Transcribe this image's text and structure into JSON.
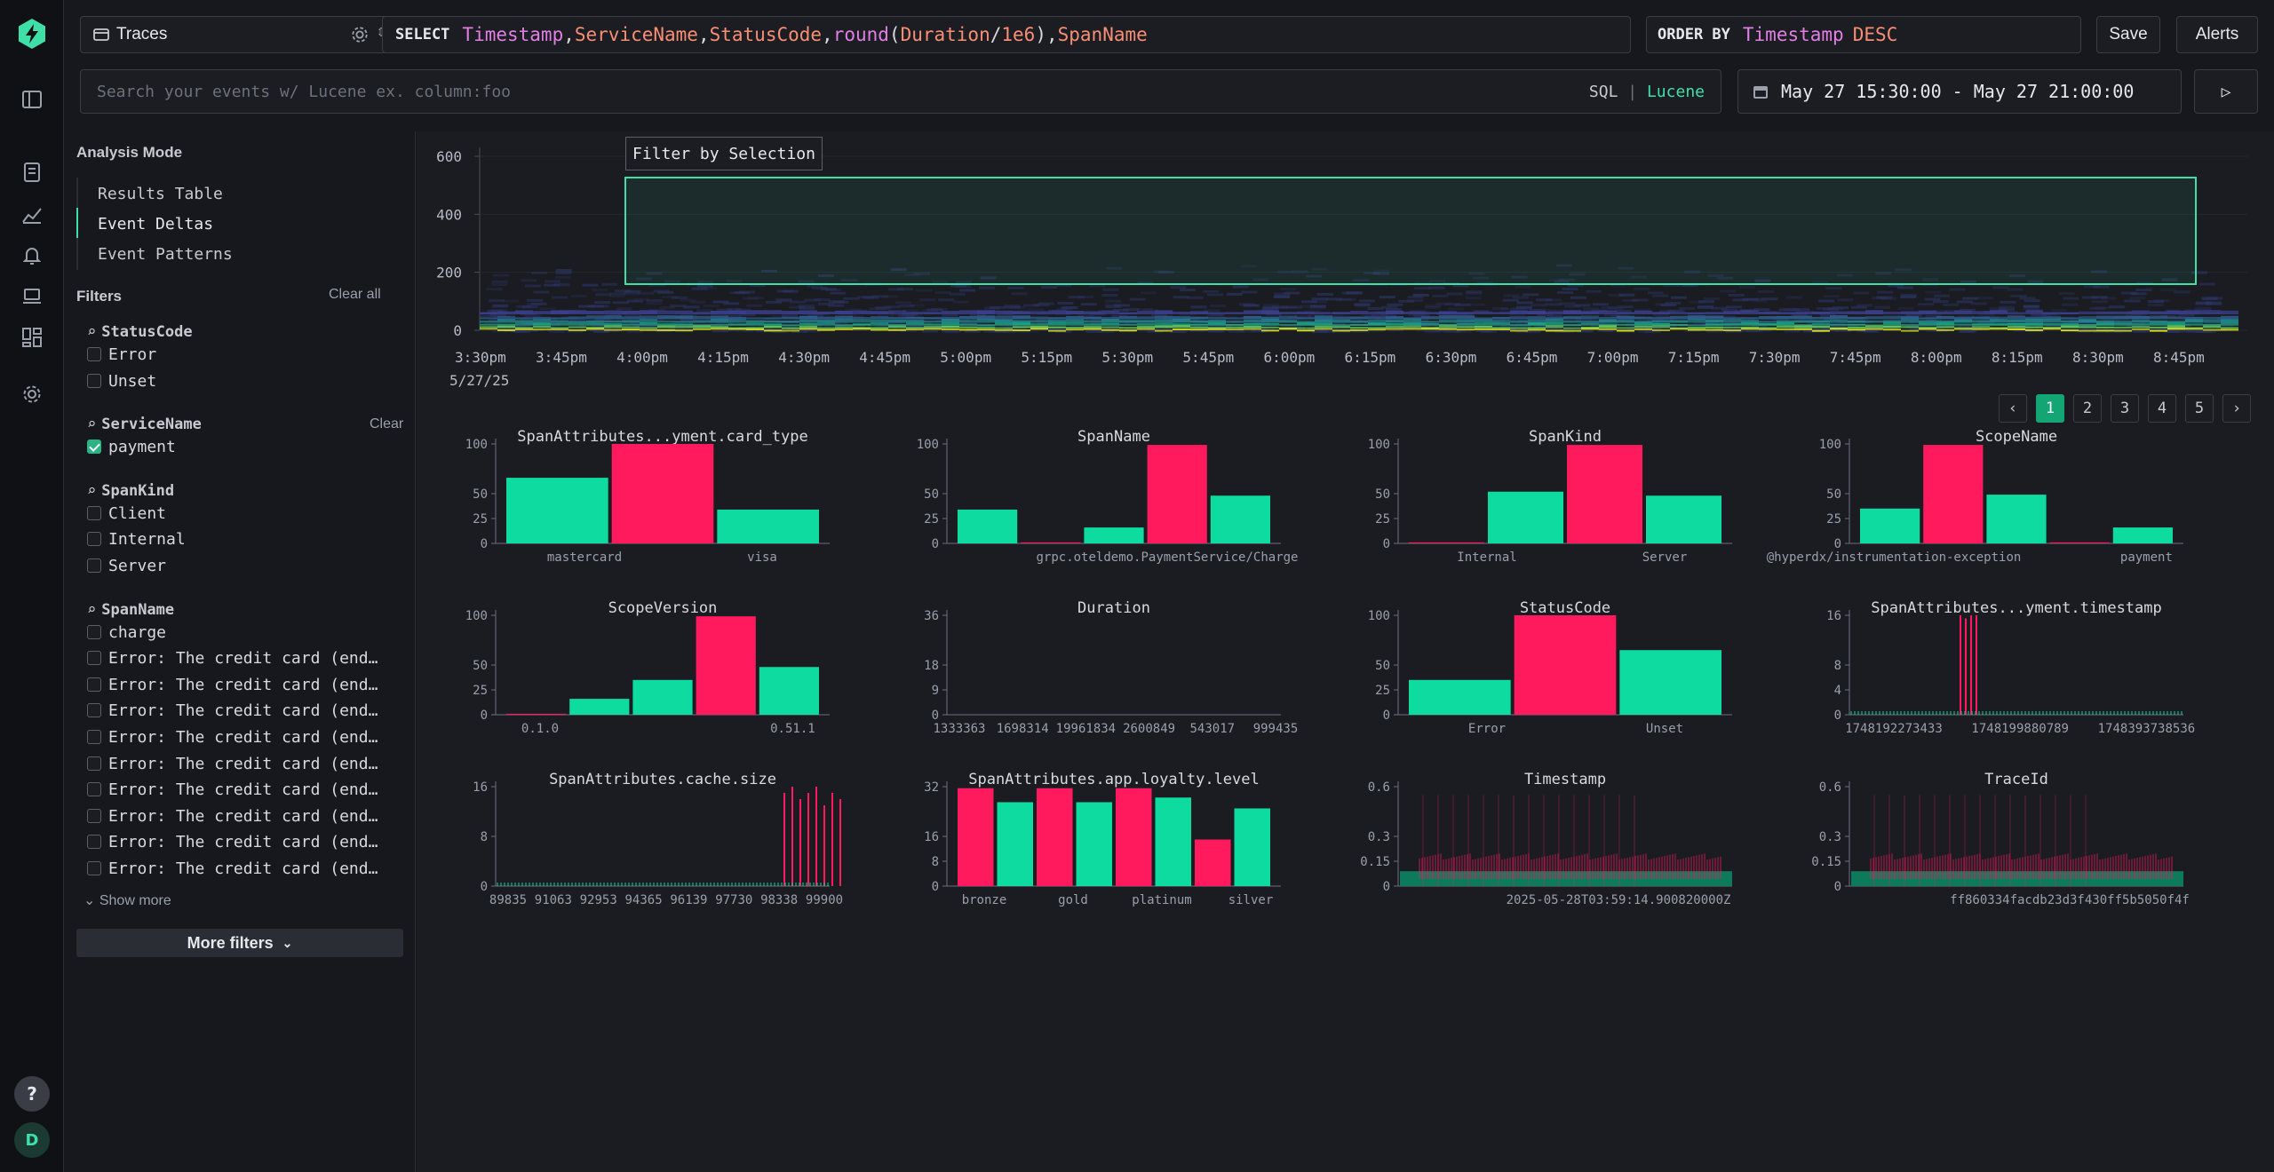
{
  "app": {
    "source": "Traces",
    "select_keyword": "SELECT",
    "select_expr_parts": [
      {
        "t": "Timestamp",
        "c": "#e27fe5"
      },
      {
        "t": ",",
        "c": "#d7dae0"
      },
      {
        "t": "ServiceName",
        "c": "#f98e74"
      },
      {
        "t": ",",
        "c": "#d7dae0"
      },
      {
        "t": "StatusCode",
        "c": "#f98e74"
      },
      {
        "t": ",",
        "c": "#d7dae0"
      },
      {
        "t": "round",
        "c": "#e27fe5"
      },
      {
        "t": "(",
        "c": "#d7dae0"
      },
      {
        "t": "Duration",
        "c": "#f98e74"
      },
      {
        "t": "/",
        "c": "#d7dae0"
      },
      {
        "t": "1e6",
        "c": "#f98e74"
      },
      {
        "t": "),",
        "c": "#d7dae0"
      },
      {
        "t": "SpanName",
        "c": "#f98e74"
      }
    ],
    "orderby_keyword": "ORDER BY",
    "orderby_field": "Timestamp",
    "orderby_dir": "DESC",
    "save_label": "Save",
    "alerts_label": "Alerts",
    "search_placeholder": "Search your events w/ Lucene ex. column:foo",
    "lang_sql": "SQL",
    "lang_sep": "|",
    "lang_lucene": "Lucene",
    "date_range": "May 27 15:30:00 - May 27 21:00:00",
    "help": "?",
    "avatar": "D"
  },
  "sidebar": {
    "analysis_mode_title": "Analysis Mode",
    "modes": [
      "Results Table",
      "Event Deltas",
      "Event Patterns"
    ],
    "active_mode": 1,
    "filters_title": "Filters",
    "clear_all": "Clear all",
    "groups": [
      {
        "name": "StatusCode",
        "clear": "",
        "options": [
          {
            "label": "Error",
            "checked": false
          },
          {
            "label": "Unset",
            "checked": false
          }
        ]
      },
      {
        "name": "ServiceName",
        "clear": "Clear",
        "options": [
          {
            "label": "payment",
            "checked": true
          }
        ]
      },
      {
        "name": "SpanKind",
        "clear": "",
        "options": [
          {
            "label": "Client",
            "checked": false
          },
          {
            "label": "Internal",
            "checked": false
          },
          {
            "label": "Server",
            "checked": false
          }
        ]
      },
      {
        "name": "SpanName",
        "clear": "",
        "options": [
          {
            "label": "charge",
            "checked": false
          },
          {
            "label": "Error: The credit card (end…",
            "checked": false
          },
          {
            "label": "Error: The credit card (end…",
            "checked": false
          },
          {
            "label": "Error: The credit card (end…",
            "checked": false
          },
          {
            "label": "Error: The credit card (end…",
            "checked": false
          },
          {
            "label": "Error: The credit card (end…",
            "checked": false
          },
          {
            "label": "Error: The credit card (end…",
            "checked": false
          },
          {
            "label": "Error: The credit card (end…",
            "checked": false
          },
          {
            "label": "Error: The credit card (end…",
            "checked": false
          },
          {
            "label": "Error: The credit card (end…",
            "checked": false
          }
        ]
      }
    ],
    "show_more": "Show more",
    "more_filters": "More filters"
  },
  "heatmap": {
    "tooltip": "Filter by Selection",
    "y_ticks": [
      "600",
      "400",
      "200",
      "0"
    ],
    "x_ticks": [
      "3:30pm",
      "3:45pm",
      "4:00pm",
      "4:15pm",
      "4:30pm",
      "4:45pm",
      "5:00pm",
      "5:15pm",
      "5:30pm",
      "5:45pm",
      "6:00pm",
      "6:15pm",
      "6:30pm",
      "6:45pm",
      "7:00pm",
      "7:15pm",
      "7:30pm",
      "7:45pm",
      "8:00pm",
      "8:15pm",
      "8:30pm",
      "8:45pm"
    ],
    "date_label": "5/27/25"
  },
  "pagination": {
    "prev": "‹",
    "pages": [
      "1",
      "2",
      "3",
      "4",
      "5"
    ],
    "active": 0,
    "next": "›"
  },
  "colors": {
    "selection": "#ff1a5e",
    "baseline": "#0ddba0",
    "accent": "#3fe0a7"
  },
  "chart_data": [
    {
      "title": "SpanAttributes...yment.card_type",
      "type": "bar",
      "y_ticks": [
        0,
        25,
        50,
        100
      ],
      "x_labels": [
        "mastercard",
        "visa"
      ],
      "bars": [
        {
          "s": "b",
          "v": 66
        },
        {
          "s": "s",
          "v": 100
        },
        {
          "s": "b",
          "v": 34
        }
      ]
    },
    {
      "title": "SpanName",
      "type": "bar",
      "y_ticks": [
        0,
        25,
        50,
        100
      ],
      "x_labels": [
        "grpc.oteldemo.PaymentService/Charge"
      ],
      "bars": [
        {
          "s": "b",
          "v": 34
        },
        {
          "s": "s",
          "v": 1
        },
        {
          "s": "b",
          "v": 16
        },
        {
          "s": "s",
          "v": 99
        },
        {
          "s": "b",
          "v": 48
        }
      ]
    },
    {
      "title": "SpanKind",
      "type": "bar",
      "y_ticks": [
        0,
        25,
        50,
        100
      ],
      "x_labels": [
        "Internal",
        "Server"
      ],
      "bars": [
        {
          "s": "s",
          "v": 1
        },
        {
          "s": "b",
          "v": 52
        },
        {
          "s": "s",
          "v": 99
        },
        {
          "s": "b",
          "v": 48
        }
      ]
    },
    {
      "title": "ScopeName",
      "type": "bar",
      "y_ticks": [
        0,
        25,
        50,
        100
      ],
      "x_labels": [
        "@hyperdx/instrumentation-exception",
        "payment"
      ],
      "bars": [
        {
          "s": "b",
          "v": 35
        },
        {
          "s": "s",
          "v": 99
        },
        {
          "s": "b",
          "v": 49
        },
        {
          "s": "s",
          "v": 1
        },
        {
          "s": "b",
          "v": 16
        }
      ]
    },
    {
      "title": "ScopeVersion",
      "type": "bar",
      "y_ticks": [
        0,
        25,
        50,
        100
      ],
      "x_labels": [
        "0.1.0",
        "0.51.1"
      ],
      "bars": [
        {
          "s": "s",
          "v": 1
        },
        {
          "s": "b",
          "v": 16
        },
        {
          "s": "b",
          "v": 35
        },
        {
          "s": "s",
          "v": 99
        },
        {
          "s": "b",
          "v": 48
        }
      ]
    },
    {
      "title": "Duration",
      "type": "bar",
      "y_ticks": [
        0,
        9,
        18,
        36
      ],
      "x_labels": [
        "1333363",
        "1698314",
        "19961834",
        "2600849",
        "543017",
        "999435"
      ],
      "bars": []
    },
    {
      "title": "StatusCode",
      "type": "bar",
      "y_ticks": [
        0,
        25,
        50,
        100
      ],
      "x_labels": [
        "Error",
        "Unset"
      ],
      "bars": [
        {
          "s": "b",
          "v": 35
        },
        {
          "s": "s",
          "v": 100
        },
        {
          "s": "b",
          "v": 65
        }
      ]
    },
    {
      "title": "SpanAttributes...yment.timestamp",
      "type": "bar",
      "y_ticks": [
        0,
        4,
        8,
        16
      ],
      "x_labels": [
        "1748192273433",
        "1748199880789",
        "1748393738536"
      ],
      "spikes": {
        "series": "s",
        "heights": [
          16,
          15.5,
          16,
          16
        ]
      }
    },
    {
      "title": "SpanAttributes.cache.size",
      "type": "bar",
      "y_ticks": [
        0,
        8,
        16
      ],
      "x_labels": [
        "89835",
        "91063",
        "92953",
        "94365",
        "96139",
        "97730",
        "98338",
        "99900"
      ],
      "spikes": {
        "series": "s",
        "heights": [
          15,
          16,
          14,
          15,
          16,
          13,
          15,
          14
        ]
      }
    },
    {
      "title": "SpanAttributes.app.loyalty.level",
      "type": "bar",
      "y_ticks": [
        0,
        8,
        16,
        32
      ],
      "x_labels": [
        "bronze",
        "gold",
        "platinum",
        "silver"
      ],
      "bars": [
        {
          "s": "s",
          "v": 31.5
        },
        {
          "s": "b",
          "v": 27
        },
        {
          "s": "s",
          "v": 31.5
        },
        {
          "s": "b",
          "v": 27
        },
        {
          "s": "s",
          "v": 31.5
        },
        {
          "s": "b",
          "v": 28.5
        },
        {
          "s": "s",
          "v": 15
        },
        {
          "s": "b",
          "v": 25
        }
      ]
    },
    {
      "title": "Timestamp",
      "type": "bar",
      "y_ticks": [
        0,
        0.15,
        0.3,
        0.6
      ],
      "x_labels": [
        "2025-05-28T03:59:14.900820000Z"
      ],
      "dense": true
    },
    {
      "title": "TraceId",
      "type": "bar",
      "y_ticks": [
        0,
        0.15,
        0.3,
        0.6
      ],
      "x_labels": [
        "ff860334facdb23d3f430ff5b5050f4f"
      ],
      "dense": true
    }
  ]
}
